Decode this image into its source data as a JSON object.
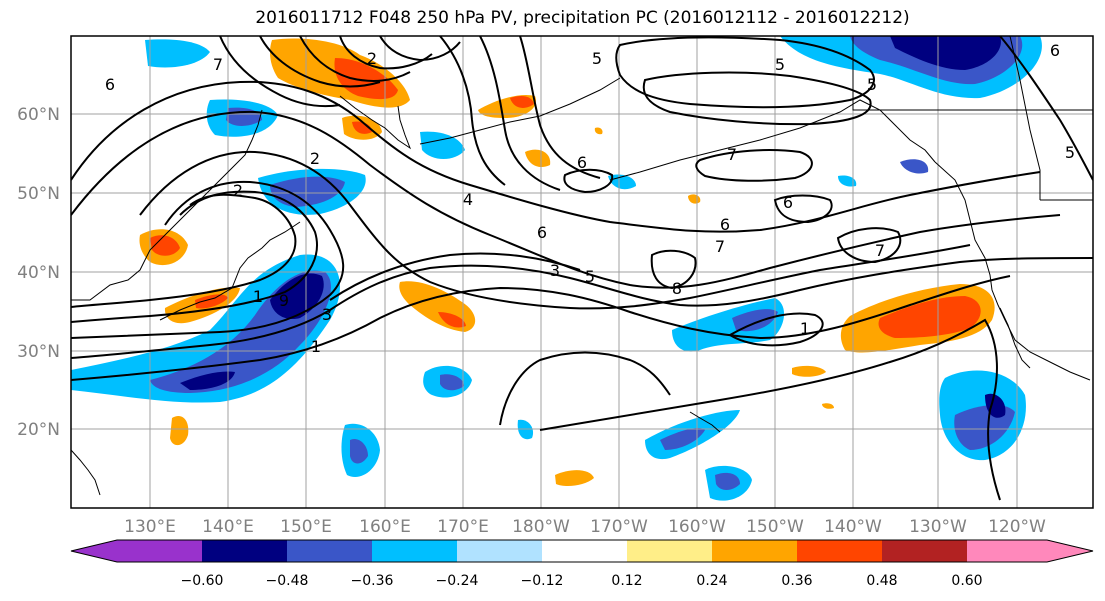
{
  "title": "2016011712 F048 250 hPa PV, precipitation PC (2016012112 - 2016012212)",
  "map": {
    "projection": "equirectangular",
    "lon_range": [
      120,
      253
    ],
    "lat_range": [
      10,
      70
    ],
    "grid": true,
    "lon_ticks": [
      {
        "lon": 130,
        "label": "130°E"
      },
      {
        "lon": 140,
        "label": "140°E"
      },
      {
        "lon": 150,
        "label": "150°E"
      },
      {
        "lon": 160,
        "label": "160°E"
      },
      {
        "lon": 170,
        "label": "170°E"
      },
      {
        "lon": 180,
        "label": "180°W"
      },
      {
        "lon": 190,
        "label": "170°W"
      },
      {
        "lon": 200,
        "label": "160°W"
      },
      {
        "lon": 210,
        "label": "150°W"
      },
      {
        "lon": 220,
        "label": "140°W"
      },
      {
        "lon": 230,
        "label": "130°W"
      },
      {
        "lon": 240,
        "label": "120°W"
      }
    ],
    "lat_ticks": [
      {
        "lat": 20,
        "label": "20°N"
      },
      {
        "lat": 30,
        "label": "30°N"
      },
      {
        "lat": 40,
        "label": "40°N"
      },
      {
        "lat": 50,
        "label": "50°N"
      },
      {
        "lat": 60,
        "label": "60°N"
      }
    ],
    "contour_labels": [
      "2",
      "6",
      "2",
      "2",
      "7",
      "6",
      "5",
      "5",
      "6",
      "5",
      "7",
      "6",
      "6",
      "4",
      "6",
      "3",
      "5",
      "8",
      "7",
      "7",
      "1",
      "1",
      "3",
      "1",
      "9",
      "5"
    ]
  },
  "colorbar": {
    "colors": [
      "#9932cc",
      "#000080",
      "#3a56c8",
      "#00bfff",
      "#b0e2ff",
      "#ffffff",
      "#ffee88",
      "#ffa500",
      "#ff4500",
      "#b22222",
      "#ff88bb"
    ],
    "labels": [
      "−0.60",
      "−0.48",
      "−0.36",
      "−0.24",
      "−0.12",
      "0.12",
      "0.24",
      "0.36",
      "0.48",
      "0.60"
    ],
    "extend": "both"
  }
}
